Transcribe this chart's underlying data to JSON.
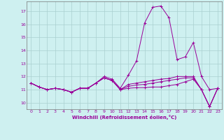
{
  "xlabel": "Windchill (Refroidissement éolien,°C)",
  "x": [
    0,
    1,
    2,
    3,
    4,
    5,
    6,
    7,
    8,
    9,
    10,
    11,
    12,
    13,
    14,
    15,
    16,
    17,
    18,
    19,
    20,
    21,
    22,
    23
  ],
  "line1": [
    11.5,
    11.2,
    11.0,
    11.1,
    11.0,
    10.8,
    11.1,
    11.1,
    11.5,
    12.0,
    11.8,
    11.1,
    12.1,
    13.2,
    16.1,
    17.3,
    17.4,
    16.5,
    13.3,
    13.5,
    14.6,
    12.0,
    11.0,
    11.1
  ],
  "line2": [
    11.5,
    11.2,
    11.0,
    11.1,
    11.0,
    10.8,
    11.1,
    11.1,
    11.5,
    11.9,
    11.7,
    11.0,
    11.4,
    11.5,
    11.6,
    11.7,
    11.8,
    11.85,
    12.0,
    12.0,
    12.0,
    11.0,
    9.7,
    11.1
  ],
  "line3": [
    11.5,
    11.2,
    11.0,
    11.1,
    11.0,
    10.8,
    11.1,
    11.1,
    11.5,
    11.9,
    11.7,
    11.0,
    11.25,
    11.35,
    11.4,
    11.5,
    11.6,
    11.7,
    11.8,
    11.9,
    11.9,
    11.0,
    9.7,
    11.1
  ],
  "line4": [
    11.5,
    11.2,
    11.0,
    11.1,
    11.0,
    10.8,
    11.1,
    11.1,
    11.5,
    11.9,
    11.7,
    11.0,
    11.1,
    11.15,
    11.15,
    11.2,
    11.2,
    11.3,
    11.4,
    11.6,
    11.8,
    11.0,
    9.7,
    11.1
  ],
  "color": "#990099",
  "bg_color": "#cef0f0",
  "grid_color": "#aacfcf",
  "ylim": [
    9.5,
    17.75
  ],
  "yticks": [
    10,
    11,
    12,
    13,
    14,
    15,
    16,
    17
  ],
  "xticks": [
    0,
    1,
    2,
    3,
    4,
    5,
    6,
    7,
    8,
    9,
    10,
    11,
    12,
    13,
    14,
    15,
    16,
    17,
    18,
    19,
    20,
    21,
    22,
    23
  ]
}
